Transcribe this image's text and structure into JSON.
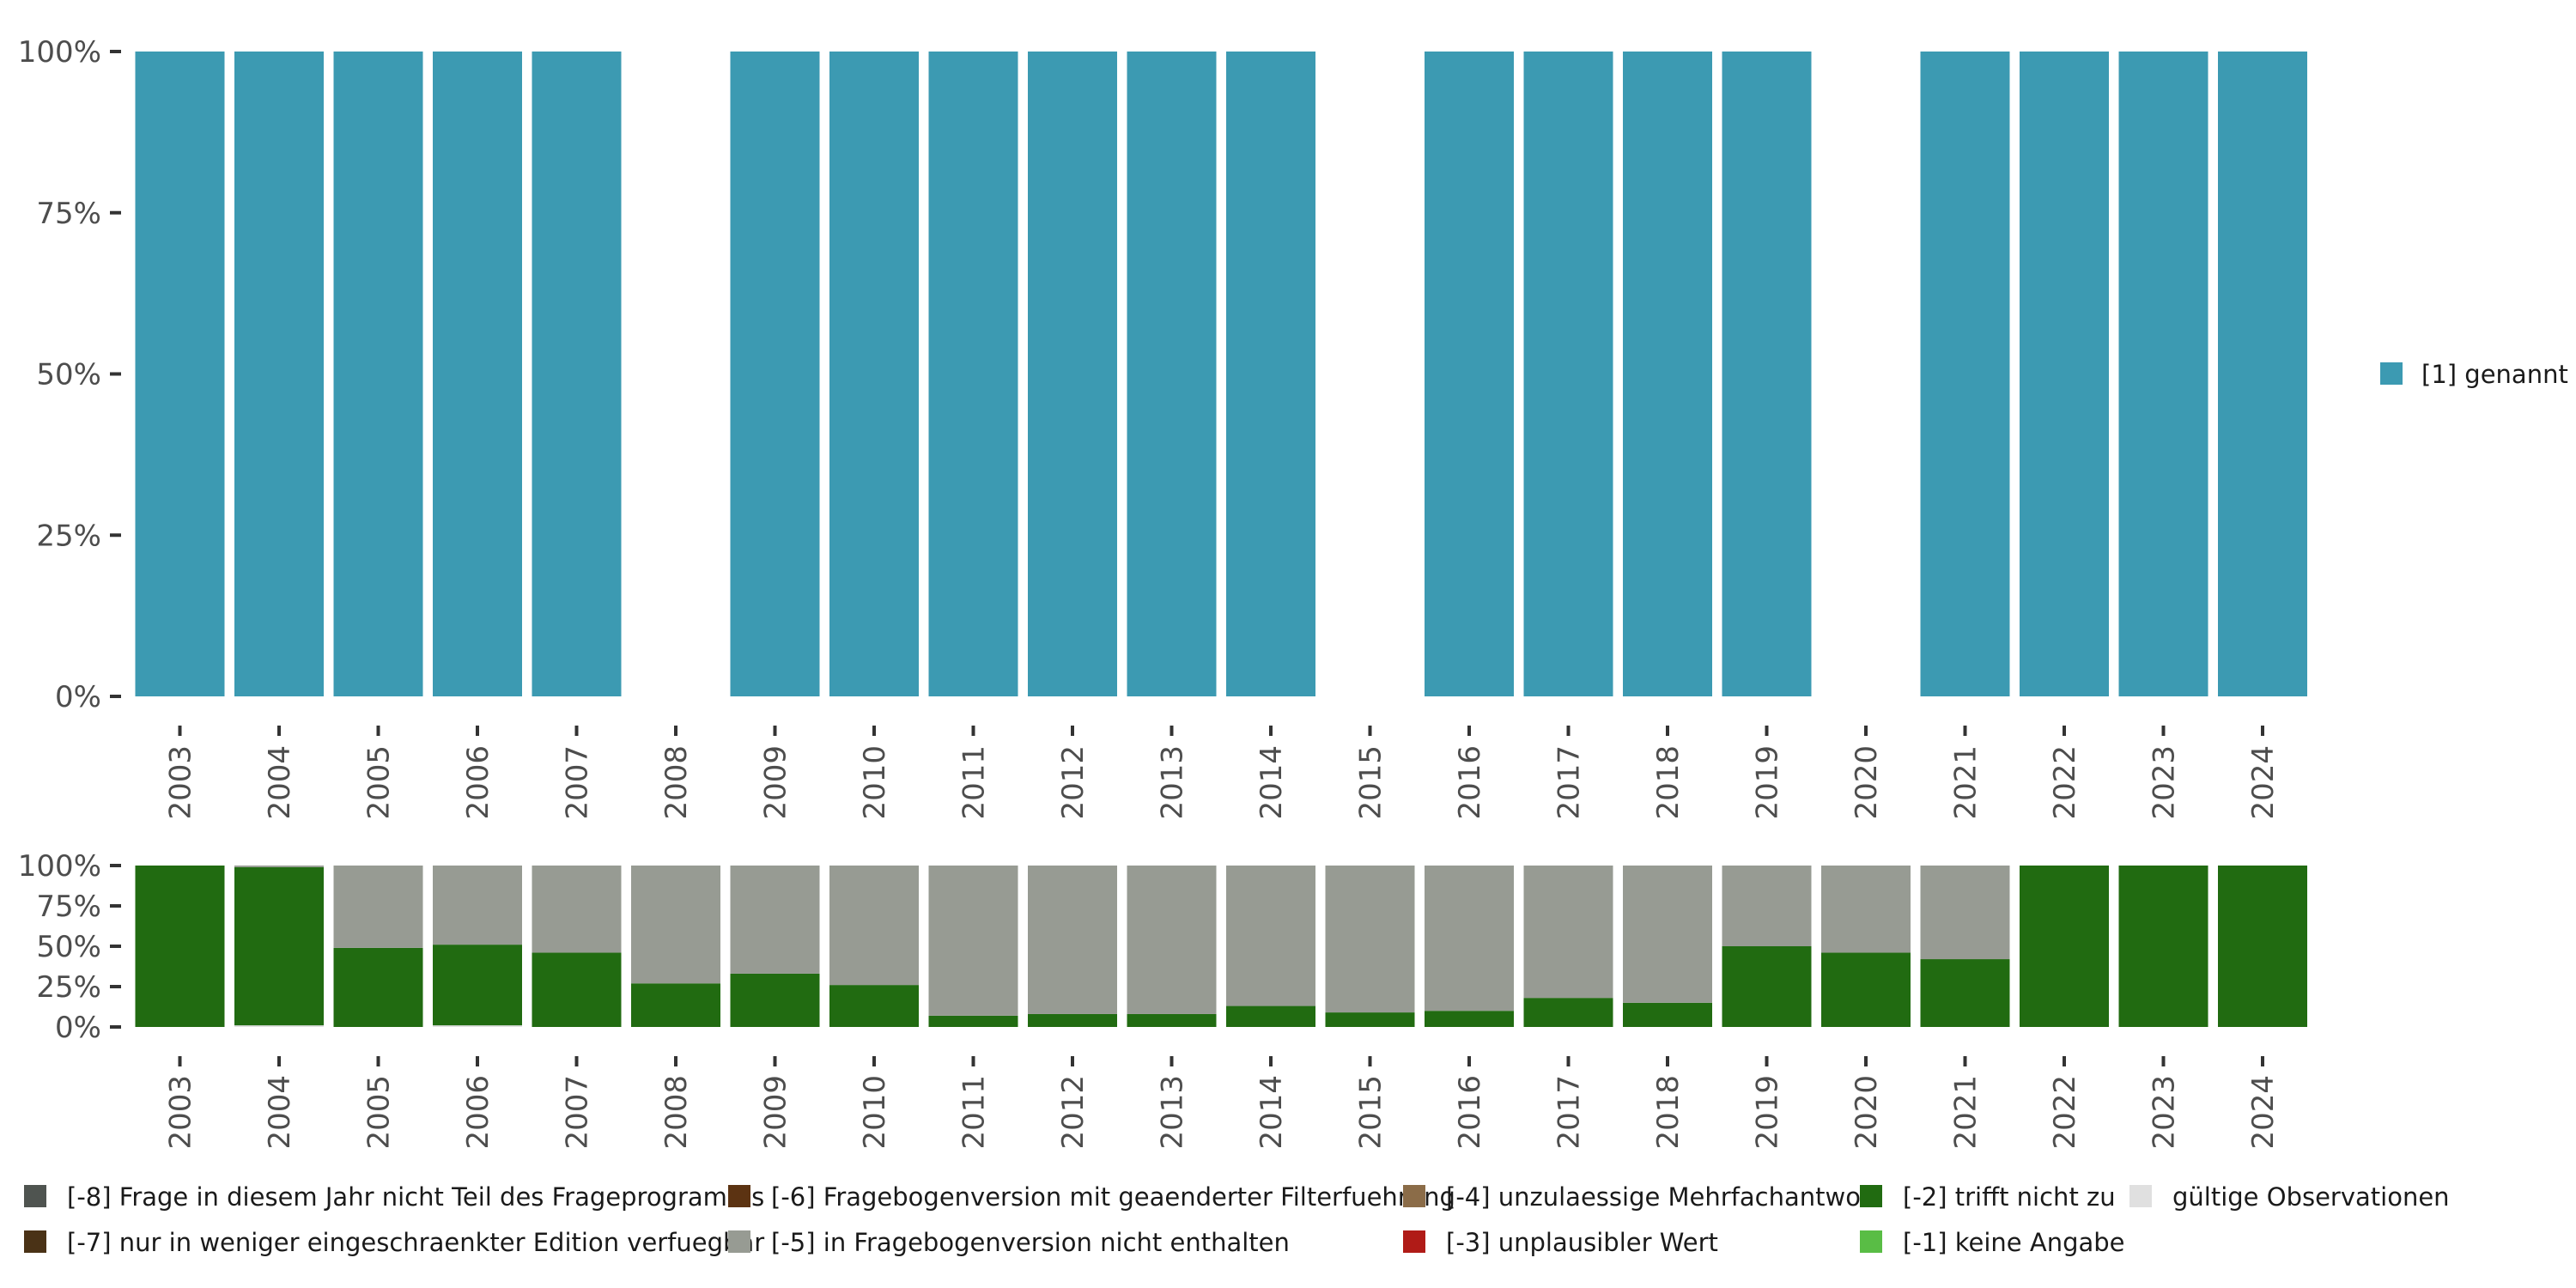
{
  "chart_data": [
    {
      "type": "bar",
      "stacked": true,
      "percent": true,
      "categories": [
        "2003",
        "2004",
        "2005",
        "2006",
        "2007",
        "2008",
        "2009",
        "2010",
        "2011",
        "2012",
        "2013",
        "2014",
        "2015",
        "2016",
        "2017",
        "2018",
        "2019",
        "2020",
        "2021",
        "2022",
        "2023",
        "2024"
      ],
      "yticks": [
        "0%",
        "25%",
        "50%",
        "75%",
        "100%"
      ],
      "ylim": [
        0,
        100
      ],
      "series": [
        {
          "name": "[1] genannt",
          "color": "#3c9ab2",
          "values": [
            100,
            100,
            100,
            100,
            100,
            null,
            100,
            100,
            100,
            100,
            100,
            100,
            null,
            100,
            100,
            100,
            100,
            null,
            100,
            100,
            100,
            100
          ]
        }
      ],
      "legend": {
        "placement": "right",
        "items": [
          {
            "label": "[1] genannt",
            "color": "#3c9ab2"
          }
        ]
      }
    },
    {
      "type": "bar",
      "stacked": true,
      "percent": true,
      "categories": [
        "2003",
        "2004",
        "2005",
        "2006",
        "2007",
        "2008",
        "2009",
        "2010",
        "2011",
        "2012",
        "2013",
        "2014",
        "2015",
        "2016",
        "2017",
        "2018",
        "2019",
        "2020",
        "2021",
        "2022",
        "2023",
        "2024"
      ],
      "yticks": [
        "0%",
        "25%",
        "50%",
        "75%",
        "100%"
      ],
      "ylim": [
        0,
        100
      ],
      "series": [
        {
          "name": "gültige Observationen",
          "color": "#e0e0e0",
          "values": [
            0,
            1,
            0,
            1,
            0,
            0,
            0,
            0,
            0,
            0,
            0,
            0,
            0,
            0,
            0,
            0,
            0,
            0,
            0,
            0,
            0,
            0
          ]
        },
        {
          "name": "[-2] trifft nicht zu",
          "color": "#216b11",
          "values": [
            100,
            98,
            49,
            50,
            46,
            27,
            33,
            26,
            7,
            8,
            8,
            13,
            9,
            10,
            18,
            15,
            50,
            46,
            42,
            100,
            100,
            100
          ]
        },
        {
          "name": "[-5] in Fragebogenversion nicht enthalten",
          "color": "#979b93",
          "values": [
            0,
            1,
            51,
            49,
            54,
            73,
            67,
            74,
            93,
            92,
            92,
            87,
            91,
            90,
            82,
            85,
            50,
            54,
            58,
            0,
            0,
            0
          ]
        }
      ],
      "legend": {
        "placement": "bottom",
        "items": [
          {
            "label": "[-8] Frage in diesem Jahr nicht Teil des Frageprogramms",
            "color": "#4f5450"
          },
          {
            "label": "[-7] nur in weniger eingeschraenkter Edition verfuegbar",
            "color": "#4a3216"
          },
          {
            "label": "[-6] Fragebogenversion mit geaenderter Filterfuehrung",
            "color": "#5c3312"
          },
          {
            "label": "[-5] in Fragebogenversion nicht enthalten",
            "color": "#979b93"
          },
          {
            "label": "[-4] unzulaessige Mehrfachantwort",
            "color": "#8b6c48"
          },
          {
            "label": "[-3] unplausibler Wert",
            "color": "#b01b17"
          },
          {
            "label": "[-2] trifft nicht zu",
            "color": "#216b11"
          },
          {
            "label": "[-1] keine Angabe",
            "color": "#59bd45"
          },
          {
            "label": "gültige Observationen",
            "color": "#e0e0e0"
          }
        ]
      }
    }
  ]
}
